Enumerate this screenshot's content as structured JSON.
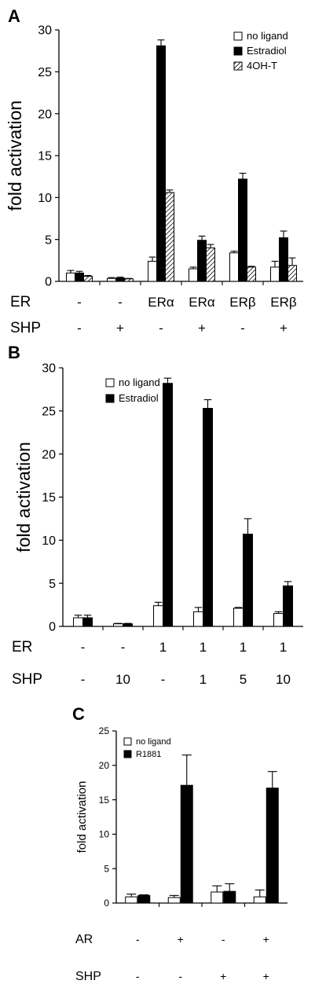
{
  "chart_data": [
    {
      "panel": "A",
      "type": "bar",
      "ylabel": "fold activation",
      "ylim": [
        0,
        30
      ],
      "yticks": [
        "0",
        "5",
        "10",
        "15",
        "20",
        "25",
        "30"
      ],
      "legend_position": "top-right",
      "series": [
        {
          "name": "no ligand",
          "style": "open",
          "values": [
            1.0,
            0.35,
            2.4,
            1.5,
            3.4,
            1.7
          ],
          "errors": [
            0.3,
            0.1,
            0.5,
            0.2,
            0.2,
            0.7
          ]
        },
        {
          "name": "Estradiol",
          "style": "filled",
          "values": [
            1.0,
            0.4,
            28.1,
            4.9,
            12.2,
            5.2
          ],
          "errors": [
            0.2,
            0.1,
            0.7,
            0.5,
            0.7,
            0.8
          ]
        },
        {
          "name": "4OH-T",
          "style": "hatched",
          "values": [
            0.6,
            0.3,
            10.6,
            4.0,
            1.7,
            1.9
          ],
          "errors": [
            0.1,
            0.05,
            0.3,
            0.4,
            0.1,
            0.9
          ]
        }
      ],
      "conditions": [
        {
          "label": "ER",
          "values": [
            "-",
            "-",
            "ERα",
            "ERα",
            "ERβ",
            "ERβ"
          ]
        },
        {
          "label": "SHP",
          "values": [
            "-",
            "+",
            "-",
            "+",
            "-",
            "+"
          ]
        }
      ]
    },
    {
      "panel": "B",
      "type": "bar",
      "ylabel": "fold activation",
      "ylim": [
        0,
        30
      ],
      "yticks": [
        "0",
        "5",
        "10",
        "15",
        "20",
        "25",
        "30"
      ],
      "legend_position": "top-left",
      "series": [
        {
          "name": "no ligand",
          "style": "open",
          "values": [
            1.0,
            0.3,
            2.4,
            1.7,
            2.1,
            1.5
          ],
          "errors": [
            0.3,
            0.05,
            0.4,
            0.5,
            0.1,
            0.2
          ]
        },
        {
          "name": "Estradiol",
          "style": "filled",
          "values": [
            1.0,
            0.3,
            28.2,
            25.3,
            10.7,
            4.7
          ],
          "errors": [
            0.3,
            0.05,
            0.6,
            1.0,
            1.8,
            0.5
          ]
        }
      ],
      "conditions": [
        {
          "label": "ER",
          "values": [
            "-",
            "-",
            "1",
            "1",
            "1",
            "1"
          ]
        },
        {
          "label": "SHP",
          "values": [
            "-",
            "10",
            "-",
            "1",
            "5",
            "10"
          ]
        }
      ]
    },
    {
      "panel": "C",
      "type": "bar",
      "ylabel": "fold activation",
      "ylim": [
        0,
        25
      ],
      "yticks": [
        "0",
        "5",
        "10",
        "15",
        "20",
        "25"
      ],
      "legend_position": "top-left",
      "series": [
        {
          "name": "no ligand",
          "style": "open",
          "values": [
            0.9,
            0.8,
            1.6,
            0.9
          ],
          "errors": [
            0.4,
            0.3,
            0.9,
            1.0
          ]
        },
        {
          "name": "R1881",
          "style": "filled",
          "values": [
            1.1,
            17.1,
            1.7,
            16.7
          ],
          "errors": [
            0.1,
            4.4,
            1.1,
            2.4
          ]
        }
      ],
      "conditions": [
        {
          "label": "AR",
          "values": [
            "-",
            "+",
            "-",
            "+"
          ]
        },
        {
          "label": "SHP",
          "values": [
            "-",
            "-",
            "+",
            "+"
          ]
        }
      ]
    }
  ]
}
